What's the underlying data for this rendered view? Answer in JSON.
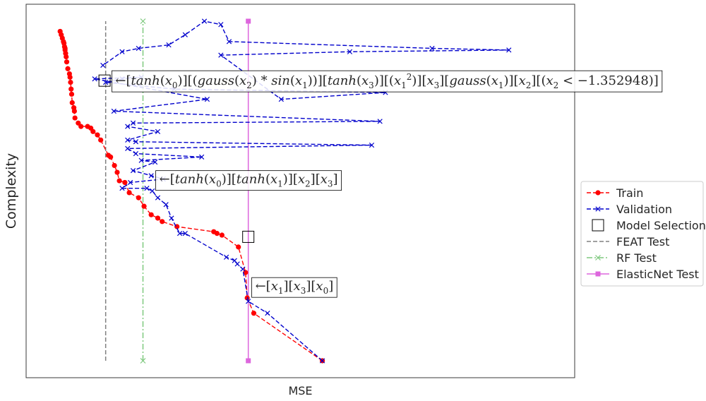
{
  "chart_data": {
    "type": "line",
    "title": "",
    "xlabel": "MSE",
    "ylabel": "Complexity",
    "xlim": [
      0,
      1000
    ],
    "ylim": [
      0,
      1000
    ],
    "grid": false,
    "legend_position": "center-right, outside plot",
    "colors": {
      "train": "#ff0000",
      "validation": "#0000cc",
      "feat": "#808080",
      "rf": "#7fc97f",
      "elasticnet": "#dd66dd",
      "selection_box": "#000000"
    },
    "series": [
      {
        "name": "Train",
        "style": "dashed",
        "marker": "circle",
        "x": [
          540,
          415,
          403,
          400,
          387,
          357,
          348,
          342,
          275,
          248,
          240,
          228,
          215,
          205,
          188,
          180,
          170,
          166,
          161,
          154,
          150,
          136,
          130,
          122,
          118,
          112,
          100,
          95,
          89,
          88,
          87,
          84,
          83,
          82,
          81,
          80,
          79,
          76,
          74,
          73,
          72,
          71,
          71,
          70,
          69,
          68,
          66,
          64,
          62
        ],
        "y": [
          0,
          140,
          185,
          260,
          335,
          370,
          375,
          380,
          395,
          410,
          420,
          430,
          455,
          480,
          495,
          525,
          530,
          555,
          575,
          600,
          605,
          650,
          665,
          675,
          685,
          690,
          690,
          700,
          715,
          735,
          745,
          760,
          785,
          800,
          820,
          835,
          845,
          860,
          880,
          895,
          905,
          915,
          920,
          925,
          935,
          940,
          950,
          960,
          970
        ]
      },
      {
        "name": "Validation",
        "style": "dashed",
        "marker": "x",
        "x": [
          540,
          440,
          405,
          395,
          385,
          380,
          365,
          290,
          280,
          265,
          255,
          240,
          230,
          220,
          175,
          190,
          250,
          228,
          195,
          235,
          210,
          320,
          200,
          185,
          630,
          200,
          185,
          240,
          185,
          195,
          645,
          160,
          330,
          125,
          210,
          175,
          145,
          270,
          655,
          465,
          355,
          590,
          880,
          740,
          370,
          355,
          325,
          290,
          260,
          205,
          175,
          140
        ],
        "y": [
          0,
          140,
          175,
          270,
          285,
          295,
          305,
          375,
          375,
          420,
          460,
          480,
          500,
          508,
          508,
          525,
          535,
          545,
          560,
          585,
          590,
          600,
          610,
          625,
          635,
          645,
          650,
          675,
          690,
          700,
          705,
          735,
          770,
          830,
          835,
          830,
          820,
          800,
          790,
          770,
          900,
          910,
          915,
          920,
          940,
          990,
          1000,
          960,
          930,
          920,
          910,
          870
        ]
      }
    ],
    "reference_lines": [
      {
        "name": "FEAT Test",
        "style": "dashed",
        "x": 145,
        "y": [
          0,
          1000
        ]
      },
      {
        "name": "RF Test",
        "style": "dashdot",
        "marker": "x",
        "x": 213,
        "y": [
          0,
          1000
        ]
      },
      {
        "name": "ElasticNet Test",
        "style": "solid",
        "marker": "square",
        "x": 405,
        "y": [
          0,
          1000
        ]
      }
    ],
    "model_selection": [
      {
        "x": 143,
        "y": 825
      },
      {
        "x": 405,
        "y": 365
      }
    ],
    "annotations": [
      {
        "x": 155,
        "y": 825,
        "parts": [
          "←",
          "[",
          "tanh",
          "(",
          "x",
          "0",
          ")",
          "]",
          "[",
          "(",
          "gauss",
          "(",
          "x",
          "2",
          ")",
          " * ",
          "sin",
          "(",
          "x",
          "1",
          "))",
          "]",
          "[",
          "tanh",
          "(",
          "x",
          "3",
          ")",
          "]",
          "[",
          "(",
          "x",
          "1",
          "2",
          ")",
          "]",
          "[",
          "x",
          "3",
          "]",
          "[",
          "gauss",
          "(",
          "x",
          "1",
          ")",
          "]",
          "[",
          "x",
          "2",
          "]",
          "[",
          "(",
          "x",
          "2",
          " < ",
          "−1.352948",
          ")",
          "]"
        ]
      },
      {
        "x": 235,
        "y": 535,
        "parts": [
          "←",
          "[",
          "tanh",
          "(",
          "x",
          "0",
          ")",
          "]",
          "[",
          "tanh",
          "(",
          "x",
          "1",
          ")",
          "]",
          "[",
          "x",
          "2",
          "]",
          "[",
          "x",
          "3",
          "]"
        ]
      },
      {
        "x": 410,
        "y": 220,
        "parts": [
          "←",
          "[",
          "x",
          "1",
          "]",
          "[",
          "x",
          "3",
          "]",
          "[",
          "x",
          "0",
          "]"
        ]
      }
    ],
    "legend": [
      "Train",
      "Validation",
      "Model Selection",
      "FEAT Test",
      "RF Test",
      "ElasticNet Test"
    ]
  }
}
